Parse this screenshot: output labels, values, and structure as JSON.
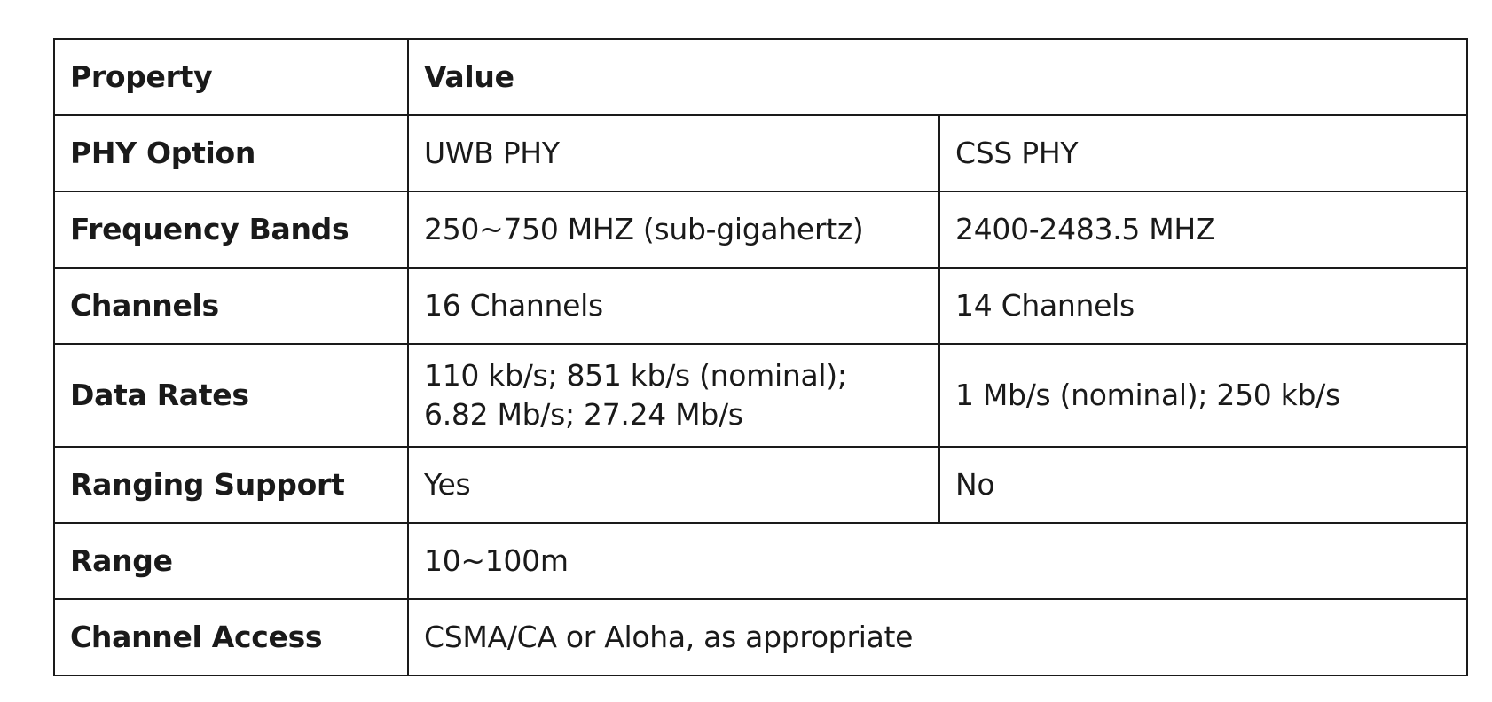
{
  "header": {
    "property": "Property",
    "value": "Value"
  },
  "rows": [
    {
      "property": "PHY Option",
      "uwb": "UWB PHY",
      "css": "CSS PHY"
    },
    {
      "property": "Frequency Bands",
      "uwb": "250~750 MHZ (sub-gigahertz)",
      "css": "2400-2483.5 MHZ"
    },
    {
      "property": "Channels",
      "uwb": "16 Channels",
      "css": "14 Channels"
    },
    {
      "property": "Data Rates",
      "uwb_line1": "110 kb/s; 851 kb/s (nominal);",
      "uwb_line2": "6.82 Mb/s; 27.24 Mb/s",
      "css": "1 Mb/s (nominal); 250 kb/s"
    },
    {
      "property": "Ranging Support",
      "uwb": "Yes",
      "css": "No"
    },
    {
      "property": "Range",
      "value": "10~100m"
    },
    {
      "property": "Channel Access",
      "value": "CSMA/CA or Aloha, as appropriate"
    }
  ]
}
